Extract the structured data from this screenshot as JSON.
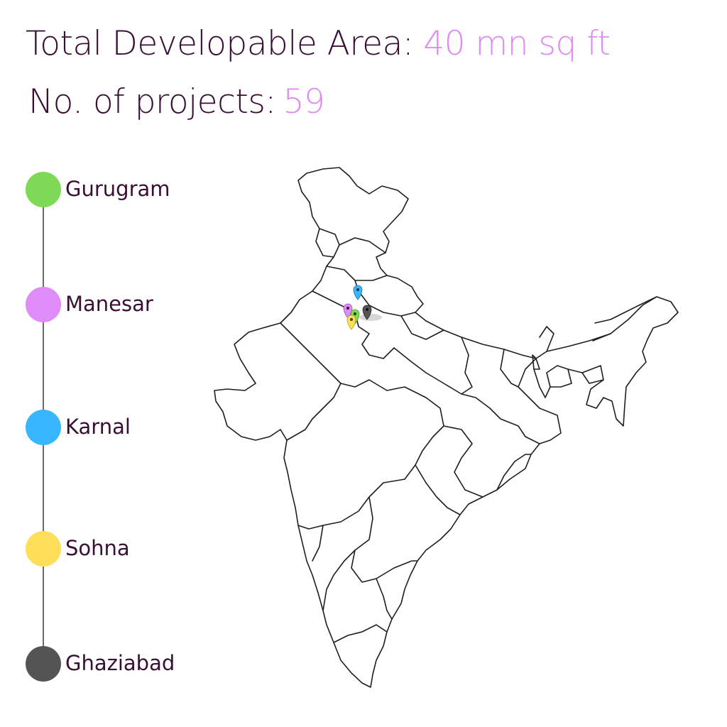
{
  "stats": {
    "area_label": "Total Developable Area:",
    "area_value": "40 mn sq ft",
    "projects_label": "No. of projects:",
    "projects_value": "59"
  },
  "legend": [
    {
      "label": "Gurugram",
      "color": "#7ed957"
    },
    {
      "label": "Manesar",
      "color": "#e08cf8"
    },
    {
      "label": "Karnal",
      "color": "#38b6ff"
    },
    {
      "label": "Sohna",
      "color": "#ffde59"
    },
    {
      "label": "Ghaziabad",
      "color": "#545454"
    }
  ],
  "map": {
    "region": "India",
    "markers": [
      {
        "city": "Karnal",
        "color": "#38b6ff",
        "icon": "map-pin-icon"
      },
      {
        "city": "Manesar",
        "color": "#e08cf8",
        "icon": "map-pin-icon"
      },
      {
        "city": "Gurugram",
        "color": "#7ed957",
        "icon": "map-pin-icon"
      },
      {
        "city": "Sohna",
        "color": "#ffde59",
        "icon": "map-pin-icon"
      },
      {
        "city": "Ghaziabad",
        "color": "#545454",
        "icon": "map-pin-icon"
      }
    ]
  }
}
